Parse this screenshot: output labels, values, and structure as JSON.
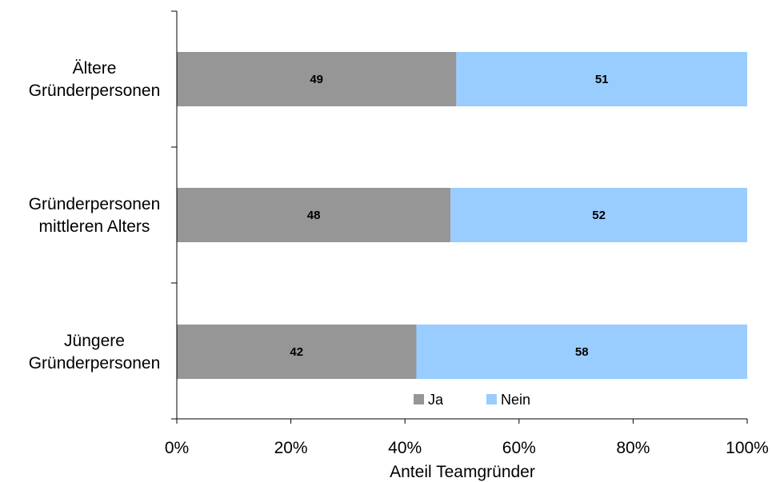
{
  "chart_data": {
    "type": "bar",
    "orientation": "horizontal",
    "stacked": true,
    "categories": [
      [
        "Ältere",
        "Gründerpersonen"
      ],
      [
        "Gründerpersonen",
        "mittleren Alters"
      ],
      [
        "Jüngere",
        "Gründerpersonen"
      ]
    ],
    "series": [
      {
        "name": "Ja",
        "values": [
          49,
          48,
          42
        ],
        "color": "#969696"
      },
      {
        "name": "Nein",
        "values": [
          51,
          52,
          58
        ],
        "color": "#99ccff"
      }
    ],
    "xlabel": "Anteil Teamgründer",
    "ylabel": "",
    "xlim": [
      0,
      100
    ],
    "xticks": [
      "0%",
      "20%",
      "40%",
      "60%",
      "80%",
      "100%"
    ],
    "grid": false,
    "legend_position": "bottom"
  }
}
